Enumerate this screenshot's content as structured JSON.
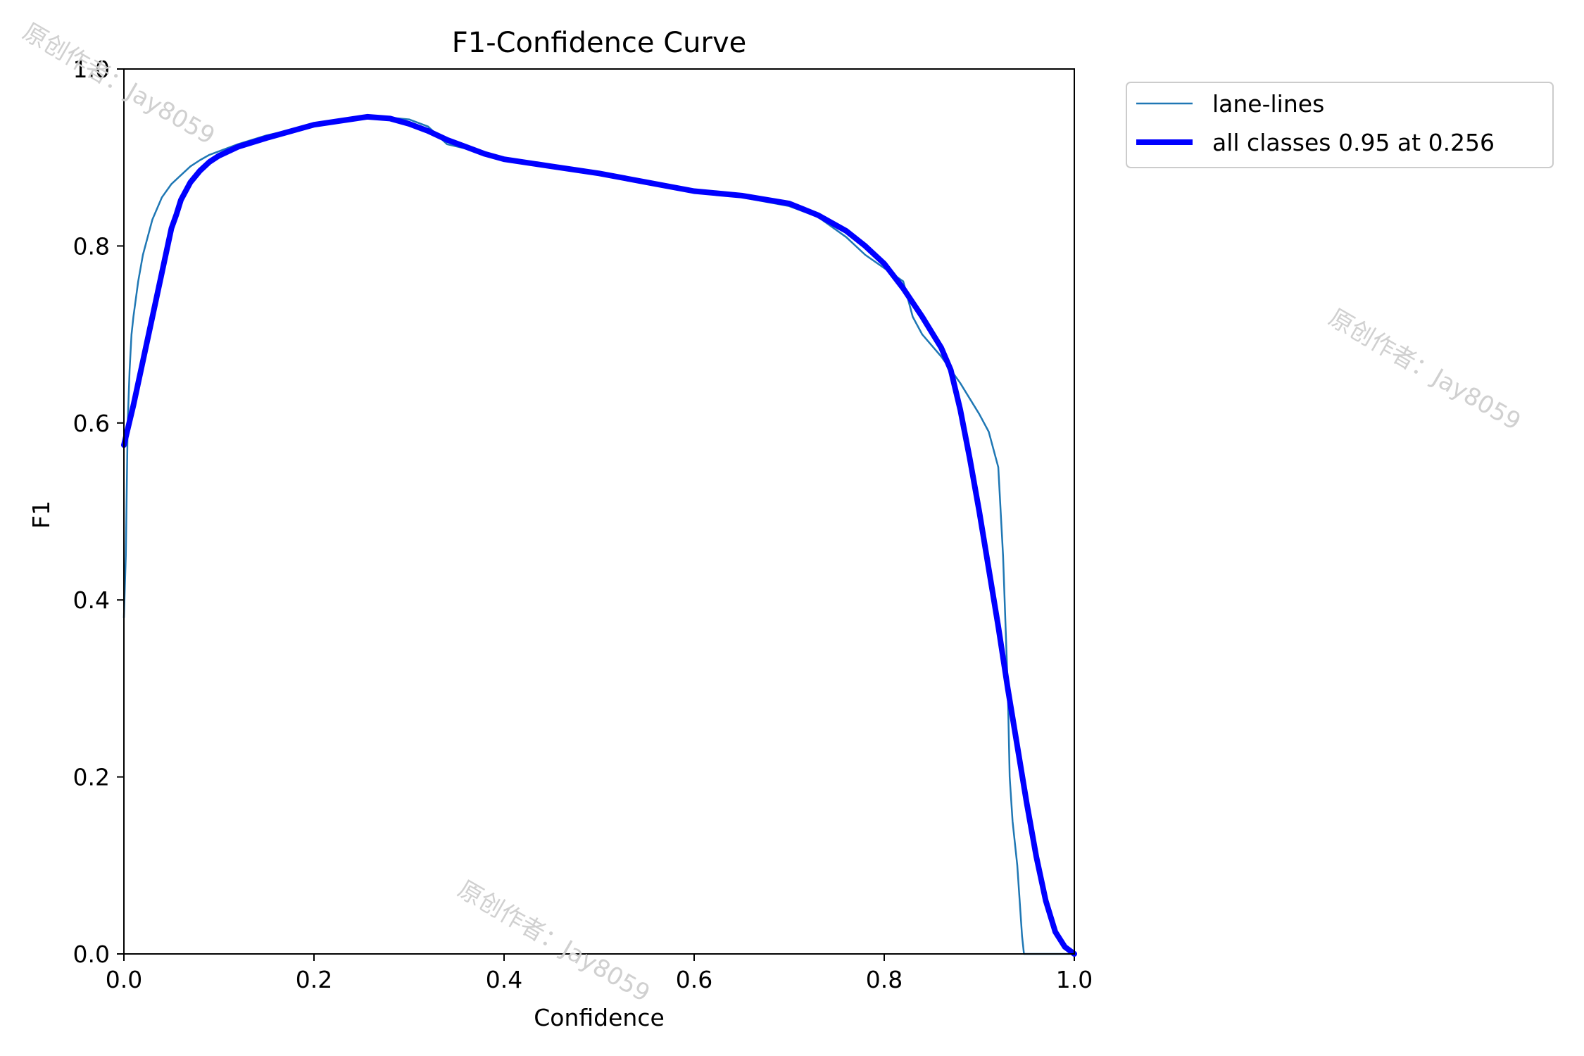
{
  "chart_data": {
    "type": "line",
    "title": "F1-Confidence Curve",
    "xlabel": "Confidence",
    "ylabel": "F1",
    "xlim": [
      0.0,
      1.0
    ],
    "ylim": [
      0.0,
      1.0
    ],
    "xticks": [
      "0.0",
      "0.2",
      "0.4",
      "0.6",
      "0.8",
      "1.0"
    ],
    "yticks": [
      "0.0",
      "0.2",
      "0.4",
      "0.6",
      "0.8",
      "1.0"
    ],
    "grid": false,
    "legend_position": "outside top-right",
    "series": [
      {
        "name": "lane-lines",
        "color": "#1f77b4",
        "style": "thin",
        "x": [
          0.0,
          0.002,
          0.004,
          0.006,
          0.008,
          0.01,
          0.015,
          0.02,
          0.03,
          0.04,
          0.05,
          0.06,
          0.07,
          0.08,
          0.09,
          0.1,
          0.12,
          0.15,
          0.2,
          0.25,
          0.28,
          0.3,
          0.32,
          0.34,
          0.36,
          0.38,
          0.4,
          0.45,
          0.5,
          0.55,
          0.6,
          0.65,
          0.7,
          0.73,
          0.76,
          0.78,
          0.8,
          0.82,
          0.83,
          0.84,
          0.86,
          0.88,
          0.9,
          0.91,
          0.92,
          0.925,
          0.93,
          0.932,
          0.935,
          0.94,
          0.945,
          0.947,
          0.95,
          0.97,
          1.0
        ],
        "y": [
          0.38,
          0.45,
          0.6,
          0.66,
          0.7,
          0.72,
          0.76,
          0.79,
          0.83,
          0.855,
          0.87,
          0.88,
          0.89,
          0.897,
          0.903,
          0.907,
          0.915,
          0.925,
          0.937,
          0.944,
          0.945,
          0.943,
          0.935,
          0.915,
          0.91,
          0.905,
          0.9,
          0.892,
          0.882,
          0.872,
          0.862,
          0.855,
          0.845,
          0.833,
          0.81,
          0.79,
          0.775,
          0.76,
          0.72,
          0.7,
          0.675,
          0.645,
          0.61,
          0.59,
          0.55,
          0.45,
          0.3,
          0.2,
          0.15,
          0.1,
          0.02,
          0.0,
          0.0,
          0.0,
          0.0
        ]
      },
      {
        "name": "all classes 0.95 at 0.256",
        "color": "#0000ff",
        "style": "thick",
        "x": [
          0.0,
          0.01,
          0.02,
          0.03,
          0.04,
          0.05,
          0.055,
          0.06,
          0.07,
          0.08,
          0.09,
          0.1,
          0.12,
          0.15,
          0.2,
          0.256,
          0.28,
          0.3,
          0.32,
          0.34,
          0.36,
          0.38,
          0.4,
          0.45,
          0.5,
          0.55,
          0.6,
          0.65,
          0.7,
          0.73,
          0.76,
          0.78,
          0.8,
          0.82,
          0.84,
          0.86,
          0.87,
          0.88,
          0.89,
          0.9,
          0.91,
          0.92,
          0.93,
          0.94,
          0.95,
          0.96,
          0.97,
          0.98,
          0.99,
          1.0
        ],
        "y": [
          0.575,
          0.62,
          0.67,
          0.72,
          0.77,
          0.82,
          0.835,
          0.852,
          0.872,
          0.885,
          0.895,
          0.902,
          0.912,
          0.922,
          0.937,
          0.946,
          0.944,
          0.938,
          0.93,
          0.92,
          0.912,
          0.904,
          0.898,
          0.89,
          0.882,
          0.872,
          0.862,
          0.857,
          0.848,
          0.835,
          0.817,
          0.8,
          0.78,
          0.752,
          0.72,
          0.685,
          0.66,
          0.615,
          0.56,
          0.5,
          0.435,
          0.37,
          0.3,
          0.235,
          0.17,
          0.11,
          0.06,
          0.025,
          0.008,
          0.0
        ]
      }
    ]
  },
  "watermarks": [
    "原创作者：Jay8059",
    "原创作者：Jay8059",
    "原创作者：Jay8059"
  ]
}
